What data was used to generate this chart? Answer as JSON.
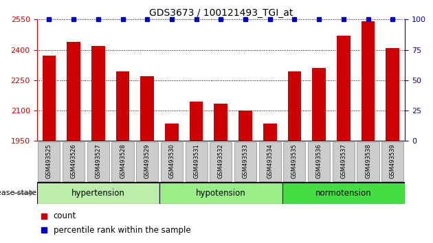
{
  "title": "GDS3673 / 100121493_TGI_at",
  "samples": [
    "GSM493525",
    "GSM493526",
    "GSM493527",
    "GSM493528",
    "GSM493529",
    "GSM493530",
    "GSM493531",
    "GSM493532",
    "GSM493533",
    "GSM493534",
    "GSM493535",
    "GSM493536",
    "GSM493537",
    "GSM493538",
    "GSM493539"
  ],
  "counts": [
    2370,
    2440,
    2420,
    2295,
    2270,
    2035,
    2145,
    2135,
    2100,
    2035,
    2295,
    2310,
    2470,
    2540,
    2410
  ],
  "percentile_ranks": [
    100,
    100,
    100,
    100,
    100,
    100,
    100,
    100,
    100,
    100,
    100,
    100,
    100,
    100,
    100
  ],
  "ylim_left": [
    1950,
    2550
  ],
  "ylim_right": [
    0,
    100
  ],
  "yticks_left": [
    1950,
    2100,
    2250,
    2400,
    2550
  ],
  "yticks_right": [
    0,
    25,
    50,
    75,
    100
  ],
  "group_defs": [
    {
      "name": "hypertension",
      "start": 0,
      "end": 5,
      "color": "#bbeeaa"
    },
    {
      "name": "hypotension",
      "start": 5,
      "end": 10,
      "color": "#99ee88"
    },
    {
      "name": "normotension",
      "start": 10,
      "end": 15,
      "color": "#44dd44"
    }
  ],
  "bar_color": "#cc0000",
  "percentile_color": "#0000cc",
  "tick_box_color": "#cccccc",
  "label_count": "count",
  "label_percentile": "percentile rank within the sample",
  "disease_state_label": "disease state",
  "left_axis_color": "#cc0000",
  "right_axis_color": "#0000cc"
}
